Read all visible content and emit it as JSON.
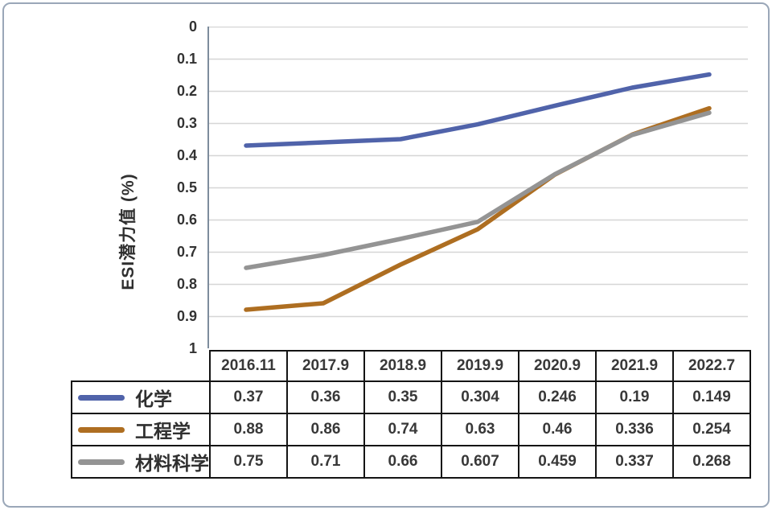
{
  "panel": {
    "frame_border_color": "#9aa7b8",
    "background": "#ffffff"
  },
  "chart_data": {
    "type": "line",
    "title": "",
    "ylabel": "ESI潜力值 (%)",
    "xlabel": "",
    "categories": [
      "2016.11",
      "2017.9",
      "2018.9",
      "2019.9",
      "2020.9",
      "2021.9",
      "2022.7"
    ],
    "series": [
      {
        "name": "化学",
        "color": "#5063aa",
        "values": [
          0.37,
          0.36,
          0.35,
          0.304,
          0.246,
          0.19,
          0.149
        ]
      },
      {
        "name": "工程学",
        "color": "#ae6e21",
        "values": [
          0.88,
          0.86,
          0.74,
          0.63,
          0.46,
          0.336,
          0.254
        ]
      },
      {
        "name": "材料科学",
        "color": "#949494",
        "values": [
          0.75,
          0.71,
          0.66,
          0.607,
          0.459,
          0.337,
          0.268
        ]
      }
    ],
    "y_ticks": [
      "0",
      "0.1",
      "0.2",
      "0.3",
      "0.4",
      "0.5",
      "0.6",
      "0.7",
      "0.8",
      "0.9",
      "1"
    ],
    "ylim": [
      0,
      1
    ],
    "y_axis_inverted": true,
    "grid": true,
    "gridline_color": "#d6d6d6",
    "axis_line_color": "#7d8c9c",
    "legend_position": "data-table-left",
    "table_border_color": "#141414"
  }
}
